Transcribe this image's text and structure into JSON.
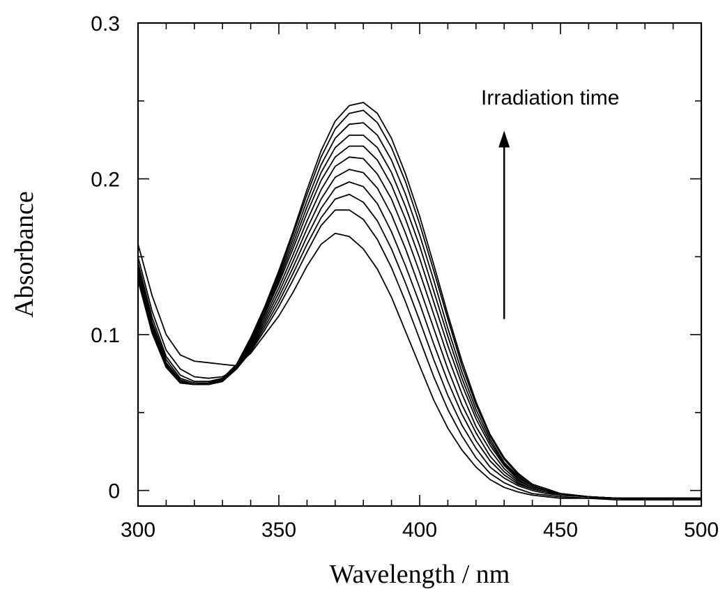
{
  "chart_data": {
    "type": "line",
    "title": "",
    "xlabel": "Wavelength / nm",
    "ylabel": "Absorbance",
    "xlim": [
      300,
      500
    ],
    "ylim": [
      -0.01,
      0.3
    ],
    "x_ticks_major": [
      300,
      350,
      400,
      450,
      500
    ],
    "x_tick_labels": [
      "300",
      "350",
      "400",
      "450",
      "500"
    ],
    "x_ticks_minor": [
      310,
      320,
      330,
      340,
      360,
      370,
      380,
      390,
      410,
      420,
      430,
      440,
      460,
      470,
      480,
      490
    ],
    "y_ticks_major": [
      0,
      0.1,
      0.2,
      0.3
    ],
    "y_tick_labels": [
      "0",
      "0.1",
      "0.2",
      "0.3"
    ],
    "y_ticks_minor": [
      0.05,
      0.15,
      0.25
    ],
    "grid": false,
    "legend": "none",
    "line_color": "#000000",
    "annotation": {
      "text": "Irradiation time",
      "arrow_direction": "up",
      "arrow_x": 430,
      "arrow_y_start": 0.11,
      "arrow_y_end": 0.23
    },
    "x": [
      300,
      305,
      310,
      315,
      320,
      325,
      330,
      335,
      340,
      345,
      350,
      355,
      360,
      365,
      370,
      375,
      380,
      385,
      390,
      395,
      400,
      405,
      410,
      415,
      420,
      425,
      430,
      435,
      440,
      445,
      450,
      460,
      470,
      480,
      490,
      500
    ],
    "series": [
      {
        "values": [
          0.158,
          0.125,
          0.1,
          0.087,
          0.083,
          0.082,
          0.081,
          0.08,
          0.088,
          0.1,
          0.112,
          0.127,
          0.144,
          0.158,
          0.165,
          0.163,
          0.155,
          0.142,
          0.124,
          0.102,
          0.08,
          0.058,
          0.04,
          0.026,
          0.015,
          0.007,
          0.002,
          -0.001,
          -0.003,
          -0.004,
          -0.005,
          -0.005,
          -0.006,
          -0.006,
          -0.006,
          -0.006
        ]
      },
      {
        "values": [
          0.15,
          0.115,
          0.09,
          0.078,
          0.073,
          0.072,
          0.073,
          0.078,
          0.089,
          0.103,
          0.118,
          0.135,
          0.153,
          0.17,
          0.18,
          0.18,
          0.174,
          0.161,
          0.143,
          0.121,
          0.097,
          0.073,
          0.052,
          0.035,
          0.021,
          0.011,
          0.005,
          0.001,
          -0.002,
          -0.003,
          -0.004,
          -0.005,
          -0.005,
          -0.006,
          -0.006,
          -0.006
        ]
      },
      {
        "values": [
          0.146,
          0.111,
          0.086,
          0.074,
          0.07,
          0.07,
          0.072,
          0.078,
          0.09,
          0.105,
          0.121,
          0.139,
          0.158,
          0.175,
          0.187,
          0.19,
          0.185,
          0.173,
          0.155,
          0.133,
          0.109,
          0.084,
          0.061,
          0.042,
          0.027,
          0.015,
          0.008,
          0.003,
          0.0,
          -0.002,
          -0.003,
          -0.004,
          -0.005,
          -0.005,
          -0.005,
          -0.005
        ]
      },
      {
        "values": [
          0.144,
          0.108,
          0.084,
          0.072,
          0.069,
          0.069,
          0.071,
          0.078,
          0.091,
          0.107,
          0.124,
          0.143,
          0.163,
          0.181,
          0.194,
          0.198,
          0.195,
          0.184,
          0.166,
          0.144,
          0.12,
          0.094,
          0.07,
          0.049,
          0.032,
          0.019,
          0.01,
          0.004,
          0.001,
          -0.001,
          -0.003,
          -0.004,
          -0.005,
          -0.005,
          -0.005,
          -0.005
        ]
      },
      {
        "values": [
          0.142,
          0.106,
          0.082,
          0.071,
          0.068,
          0.068,
          0.07,
          0.078,
          0.092,
          0.109,
          0.127,
          0.147,
          0.168,
          0.187,
          0.201,
          0.206,
          0.204,
          0.194,
          0.177,
          0.155,
          0.13,
          0.104,
          0.078,
          0.055,
          0.037,
          0.022,
          0.012,
          0.005,
          0.001,
          -0.001,
          -0.002,
          -0.004,
          -0.005,
          -0.005,
          -0.005,
          -0.005
        ]
      },
      {
        "values": [
          0.14,
          0.105,
          0.081,
          0.07,
          0.068,
          0.068,
          0.07,
          0.079,
          0.093,
          0.111,
          0.13,
          0.151,
          0.173,
          0.193,
          0.208,
          0.214,
          0.213,
          0.203,
          0.187,
          0.165,
          0.14,
          0.113,
          0.086,
          0.062,
          0.041,
          0.026,
          0.014,
          0.006,
          0.002,
          0.0,
          -0.002,
          -0.004,
          -0.005,
          -0.005,
          -0.005,
          -0.005
        ]
      },
      {
        "values": [
          0.138,
          0.104,
          0.08,
          0.07,
          0.068,
          0.068,
          0.07,
          0.079,
          0.094,
          0.113,
          0.133,
          0.155,
          0.178,
          0.199,
          0.214,
          0.221,
          0.221,
          0.212,
          0.196,
          0.174,
          0.149,
          0.121,
          0.093,
          0.068,
          0.046,
          0.029,
          0.016,
          0.007,
          0.002,
          0.0,
          -0.002,
          -0.004,
          -0.005,
          -0.005,
          -0.005,
          -0.005
        ]
      },
      {
        "values": [
          0.137,
          0.103,
          0.08,
          0.07,
          0.068,
          0.068,
          0.071,
          0.08,
          0.095,
          0.114,
          0.135,
          0.158,
          0.182,
          0.204,
          0.22,
          0.228,
          0.228,
          0.22,
          0.204,
          0.182,
          0.157,
          0.128,
          0.099,
          0.072,
          0.049,
          0.031,
          0.017,
          0.008,
          0.003,
          0.0,
          -0.002,
          -0.004,
          -0.005,
          -0.005,
          -0.005,
          -0.005
        ]
      },
      {
        "values": [
          0.136,
          0.102,
          0.079,
          0.069,
          0.068,
          0.069,
          0.071,
          0.08,
          0.096,
          0.116,
          0.137,
          0.161,
          0.186,
          0.209,
          0.226,
          0.235,
          0.236,
          0.228,
          0.212,
          0.19,
          0.164,
          0.135,
          0.104,
          0.076,
          0.052,
          0.033,
          0.018,
          0.009,
          0.003,
          0.0,
          -0.002,
          -0.004,
          -0.005,
          -0.005,
          -0.005,
          -0.005
        ]
      },
      {
        "values": [
          0.135,
          0.101,
          0.079,
          0.069,
          0.068,
          0.069,
          0.071,
          0.08,
          0.097,
          0.117,
          0.139,
          0.164,
          0.19,
          0.214,
          0.232,
          0.242,
          0.244,
          0.236,
          0.22,
          0.198,
          0.171,
          0.141,
          0.11,
          0.08,
          0.055,
          0.035,
          0.02,
          0.01,
          0.004,
          0.001,
          -0.002,
          -0.004,
          -0.005,
          -0.005,
          -0.005,
          -0.005
        ]
      },
      {
        "values": [
          0.135,
          0.101,
          0.079,
          0.069,
          0.068,
          0.069,
          0.072,
          0.081,
          0.098,
          0.118,
          0.141,
          0.166,
          0.193,
          0.218,
          0.237,
          0.247,
          0.249,
          0.242,
          0.226,
          0.203,
          0.176,
          0.145,
          0.113,
          0.083,
          0.057,
          0.036,
          0.021,
          0.011,
          0.004,
          0.001,
          -0.002,
          -0.004,
          -0.005,
          -0.005,
          -0.005,
          -0.005
        ]
      }
    ]
  }
}
